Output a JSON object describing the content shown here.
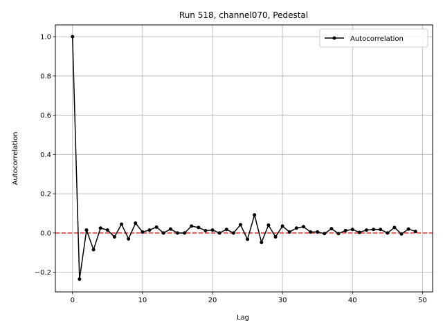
{
  "chart_data": {
    "type": "line",
    "title": "Run 518, channel070, Pedestal",
    "xlabel": "Lag",
    "ylabel": "Autocorrelation",
    "xlim": [
      -2.45,
      51.45
    ],
    "ylim": [
      -0.3,
      1.06
    ],
    "xticks": [
      0,
      10,
      20,
      30,
      40,
      50
    ],
    "yticks": [
      -0.2,
      0.0,
      0.2,
      0.4,
      0.6,
      0.8,
      1.0
    ],
    "xtick_labels": [
      "0",
      "10",
      "20",
      "30",
      "40",
      "50"
    ],
    "ytick_labels": [
      "−0.2",
      "0.0",
      "0.2",
      "0.4",
      "0.6",
      "0.8",
      "1.0"
    ],
    "grid": true,
    "legend_position": "top-right",
    "reference_line": {
      "y": 0.0,
      "color": "#d62728",
      "style": "dashed"
    },
    "series": [
      {
        "name": "Autocorrelation",
        "color": "#000000",
        "marker": "circle",
        "x": [
          0,
          1,
          2,
          3,
          4,
          5,
          6,
          7,
          8,
          9,
          10,
          11,
          12,
          13,
          14,
          15,
          16,
          17,
          18,
          19,
          20,
          21,
          22,
          23,
          24,
          25,
          26,
          27,
          28,
          29,
          30,
          31,
          32,
          33,
          34,
          35,
          36,
          37,
          38,
          39,
          40,
          41,
          42,
          43,
          44,
          45,
          46,
          47,
          48,
          49
        ],
        "values": [
          1.0,
          -0.235,
          0.015,
          -0.085,
          0.025,
          0.015,
          -0.02,
          0.045,
          -0.03,
          0.05,
          0.005,
          0.015,
          0.03,
          0.0,
          0.02,
          0.0,
          0.0,
          0.035,
          0.028,
          0.012,
          0.015,
          0.0,
          0.018,
          0.0,
          0.042,
          -0.032,
          0.092,
          -0.048,
          0.04,
          -0.02,
          0.035,
          0.005,
          0.025,
          0.032,
          0.005,
          0.005,
          -0.003,
          0.022,
          -0.003,
          0.012,
          0.018,
          0.003,
          0.015,
          0.018,
          0.018,
          0.0,
          0.028,
          -0.005,
          0.02,
          0.008
        ]
      }
    ]
  }
}
